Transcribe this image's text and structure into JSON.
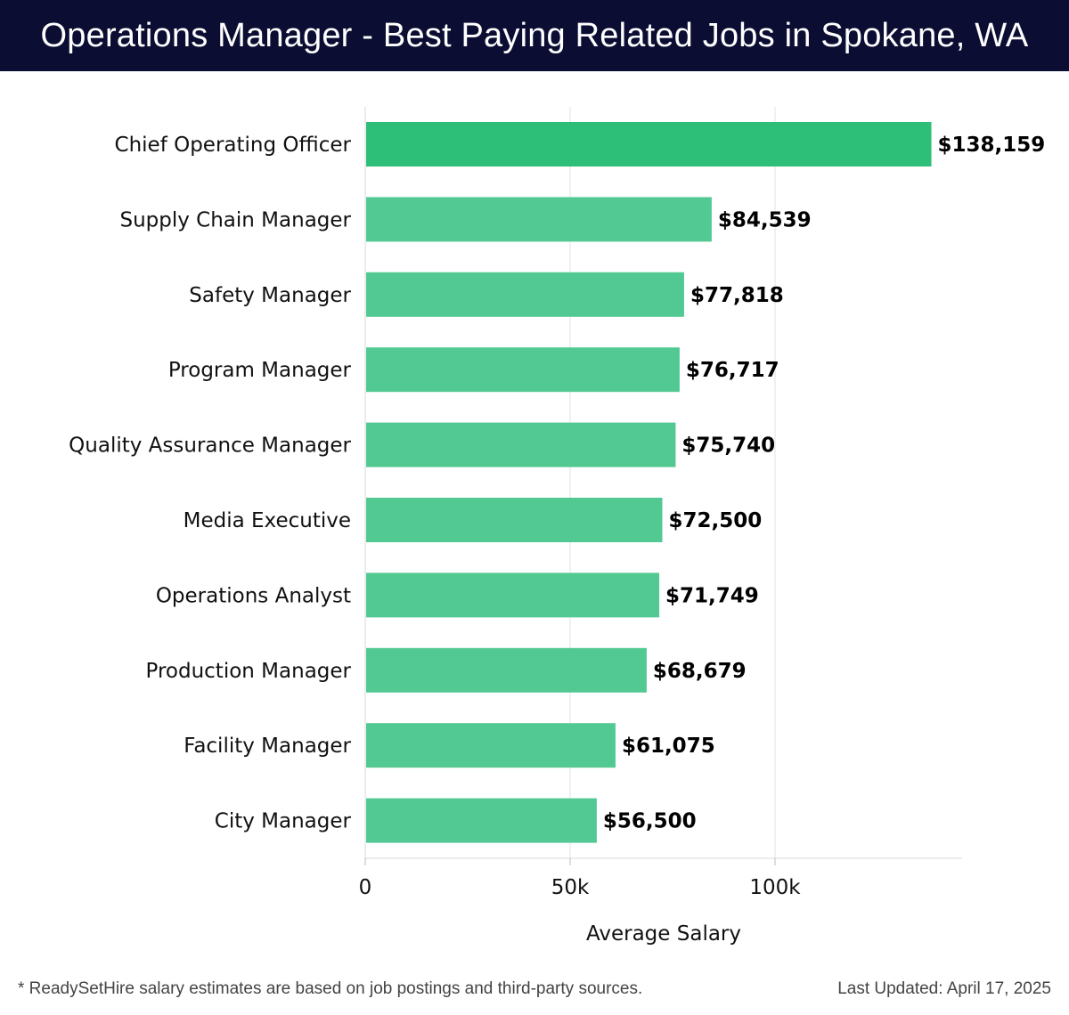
{
  "header": {
    "title": "Operations Manager - Best Paying Related Jobs in Spokane, WA"
  },
  "chart_data": {
    "type": "bar",
    "orientation": "horizontal",
    "categories": [
      "Chief Operating Officer",
      "Supply Chain Manager",
      "Safety Manager",
      "Program Manager",
      "Quality Assurance Manager",
      "Media Executive",
      "Operations Analyst",
      "Production Manager",
      "Facility Manager",
      "City Manager"
    ],
    "values": [
      138159,
      84539,
      77818,
      76717,
      75740,
      72500,
      71749,
      68679,
      61075,
      56500
    ],
    "value_labels": [
      "$138,159",
      "$84,539",
      "$77,818",
      "$76,717",
      "$75,740",
      "$72,500",
      "$71,749",
      "$68,679",
      "$61,075",
      "$56,500"
    ],
    "xlabel": "Average Salary",
    "ylabel": "",
    "xticks": [
      {
        "value": 0,
        "label": "0"
      },
      {
        "value": 50000,
        "label": "50k"
      },
      {
        "value": 100000,
        "label": "100k"
      }
    ],
    "xlim": [
      0,
      145000
    ],
    "grid": true,
    "colors": {
      "highlight": "#2dbf78",
      "bar": "#52c992"
    }
  },
  "footer": {
    "note": "* ReadySetHire salary estimates are based on job postings and third-party sources.",
    "updated": "Last Updated: April 17, 2025"
  }
}
